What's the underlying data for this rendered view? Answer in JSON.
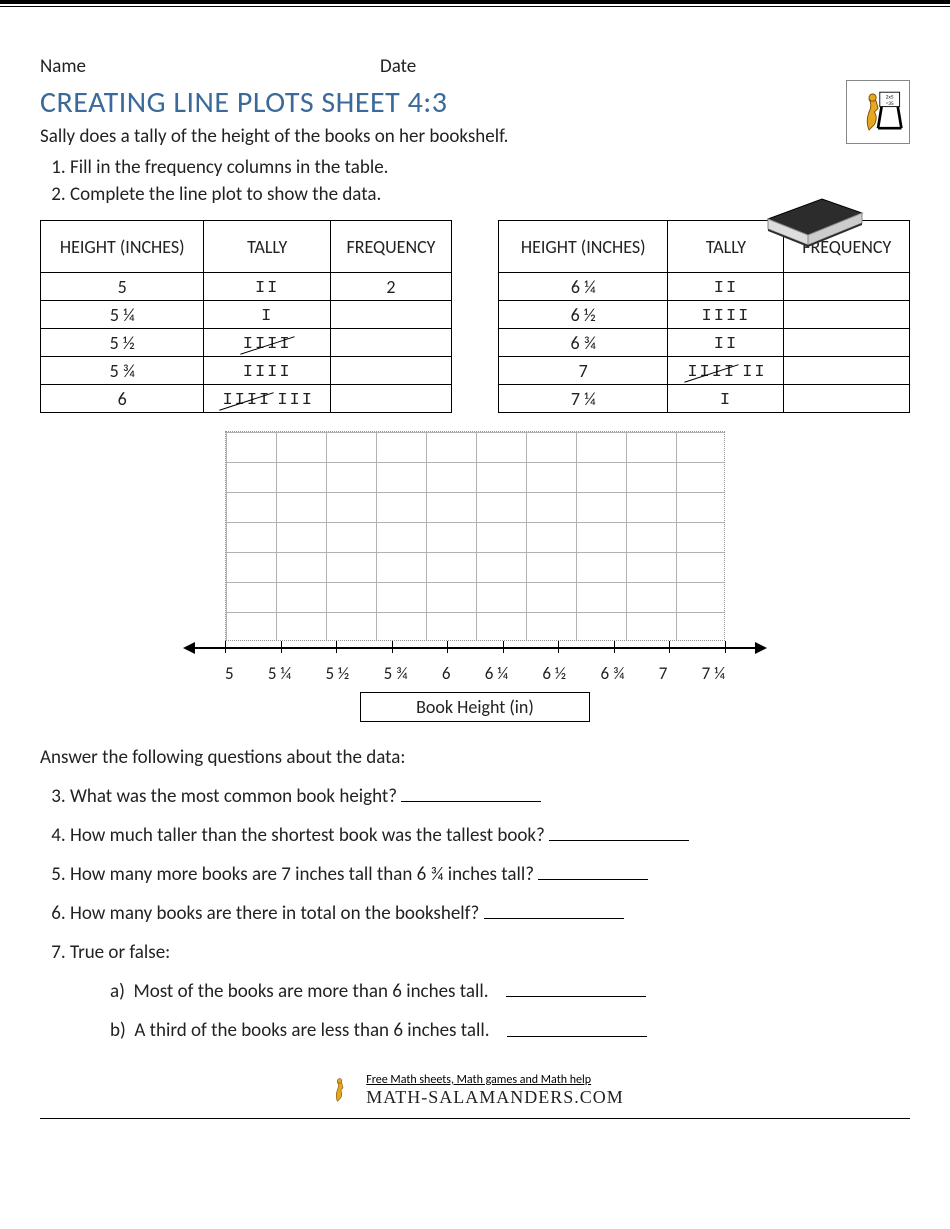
{
  "header": {
    "name_label": "Name",
    "date_label": "Date"
  },
  "title": "CREATING LINE PLOTS SHEET 4:3",
  "title_color": "#3a6a9a",
  "intro": "Sally does a tally of the height of the books on her bookshelf.",
  "instructions": [
    "Fill in the frequency columns in the table.",
    "Complete the line plot to show the data."
  ],
  "table_headers": [
    "HEIGHT (INCHES)",
    "TALLY",
    "FREQUENCY"
  ],
  "left_table": {
    "rows": [
      {
        "height": "5",
        "tally": "II",
        "tally_render": [
          "2"
        ],
        "freq": "2"
      },
      {
        "height": "5 ¼",
        "tally": "I",
        "tally_render": [
          "1"
        ],
        "freq": ""
      },
      {
        "height": "5 ½",
        "tally": "IIII/",
        "tally_render": [
          "5"
        ],
        "freq": ""
      },
      {
        "height": "5 ¾",
        "tally": "IIII",
        "tally_render": [
          "4"
        ],
        "freq": ""
      },
      {
        "height": "6",
        "tally": "IIII/ III",
        "tally_render": [
          "5",
          "3"
        ],
        "freq": ""
      }
    ]
  },
  "right_table": {
    "rows": [
      {
        "height": "6 ¼",
        "tally": "II",
        "tally_render": [
          "2"
        ],
        "freq": ""
      },
      {
        "height": "6 ½",
        "tally": "IIII",
        "tally_render": [
          "4"
        ],
        "freq": ""
      },
      {
        "height": "6 ¾",
        "tally": "II",
        "tally_render": [
          "2"
        ],
        "freq": ""
      },
      {
        "height": "7",
        "tally": "IIII/ II",
        "tally_render": [
          "5",
          "2"
        ],
        "freq": ""
      },
      {
        "height": "7 ¼",
        "tally": "I",
        "tally_render": [
          "1"
        ],
        "freq": ""
      }
    ]
  },
  "plot": {
    "grid_cols": 10,
    "grid_rows": 7,
    "grid_cell_w": 50,
    "grid_cell_h": 30,
    "tick_labels": [
      "5",
      "5 ¼",
      "5 ½",
      "5 ¾",
      "6",
      "6 ¼",
      "6 ½",
      "6 ¾",
      "7",
      "7 ¼"
    ],
    "axis_label": "Book Height (in)",
    "grid_color": "#aaaaaa",
    "axis_color": "#000000"
  },
  "questions_intro": "Answer the following questions about the data:",
  "questions": [
    "What was the most common book height?",
    "How much taller than the shortest book was the tallest book?",
    "How many more books are 7 inches tall than 6 ¾ inches tall?",
    "How many books are there in total on the bookshelf?"
  ],
  "tf_label": "True or false:",
  "tf_items": [
    "Most of the books are more than 6 inches tall.",
    "A third of the books are less than 6 inches tall."
  ],
  "footer": {
    "line1": "Free Math sheets, Math games and Math help",
    "line2": "MATH-SALAMANDERS.COM"
  }
}
